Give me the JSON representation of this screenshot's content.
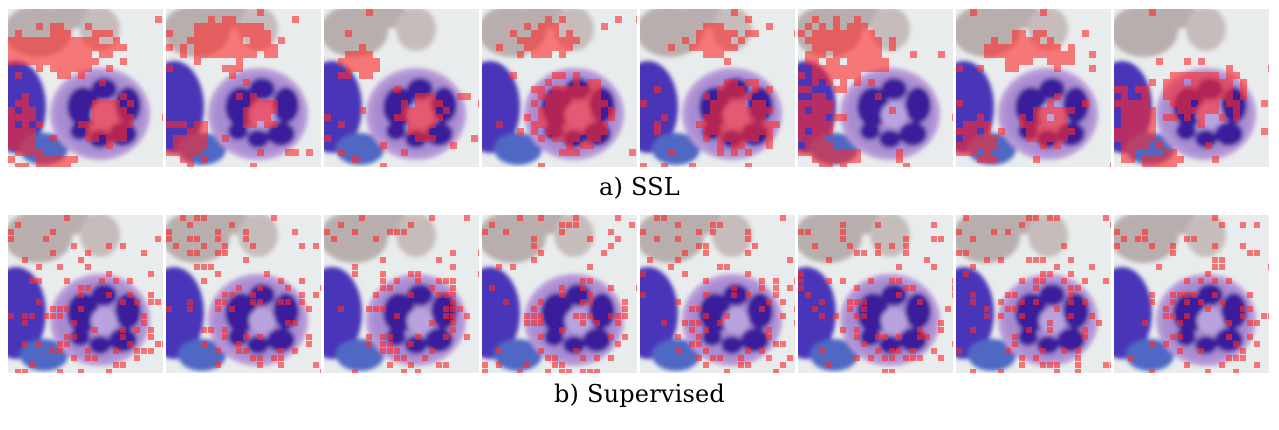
{
  "figure": {
    "panels": [
      {
        "id": "a",
        "caption": "a) SSL",
        "tile_count": 8,
        "overlay_style": "dense-clusters",
        "overlay_color": "#ff2a2a",
        "image_subject": "blood-smear-neutrophil"
      },
      {
        "id": "b",
        "caption": "b) Supervised",
        "tile_count": 8,
        "overlay_style": "sparse-scattered",
        "overlay_color": "#ff2a2a",
        "image_subject": "blood-smear-neutrophil"
      }
    ],
    "colors": {
      "background": "#e9ecec",
      "rbc": "#b9aeae",
      "cytoplasm": "#b79ad8",
      "nucleus": "#3b1f9a",
      "lymph": "#4a35b8",
      "blue_cell": "#4f67c4"
    }
  }
}
